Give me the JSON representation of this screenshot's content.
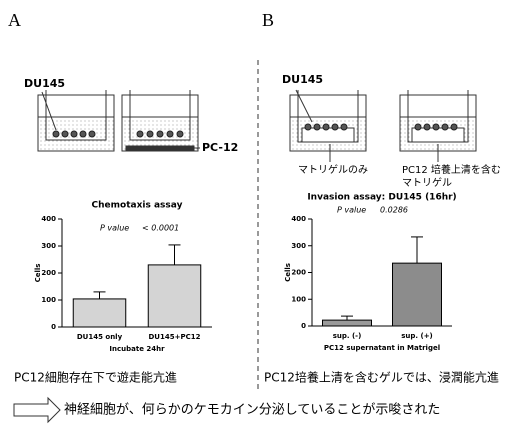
{
  "chart_data": [
    {
      "type": "bar",
      "title": "Chemotaxis assay",
      "annotations": [
        "P value",
        "< 0.0001"
      ],
      "categories": [
        "DU145 only",
        "DU145+PC12"
      ],
      "values": [
        104,
        230
      ],
      "errors": [
        26,
        74
      ],
      "colors": [
        "#d4d4d4",
        "#d4d4d4"
      ],
      "y_label": "Cells",
      "x_label": "Incubate 24hr",
      "ylim": [
        0,
        400
      ],
      "yticks": [
        0,
        100,
        200,
        300,
        400
      ]
    },
    {
      "type": "bar",
      "title": "Invasion assay: DU145 (16hr)",
      "annotations": [
        "P value",
        "0.0286"
      ],
      "categories": [
        "sup. (-)",
        "sup. (+)"
      ],
      "values": [
        22,
        235
      ],
      "errors": [
        15,
        98
      ],
      "colors": [
        "#9a9a9a",
        "#8c8c8c"
      ],
      "y_label": "Cells",
      "x_label": "PC12 supernatant in Matrigel",
      "ylim": [
        0,
        400
      ],
      "yticks": [
        0,
        100,
        200,
        300,
        400
      ]
    }
  ],
  "panel_labels": [
    "A",
    "B"
  ],
  "diagram_labels": [
    "DU145",
    "PC-12",
    "DU145",
    "マトリゲルのみ",
    "PC12 培養上清を含む",
    "マトリゲル"
  ],
  "captions": [
    "PC12細胞存在下で遊走能亢進",
    "PC12培養上清を含むゲルでは、浸潤能亢進"
  ],
  "conclusion": "神経細胞が、何らかのケモカイン分泌していることが示唆された"
}
